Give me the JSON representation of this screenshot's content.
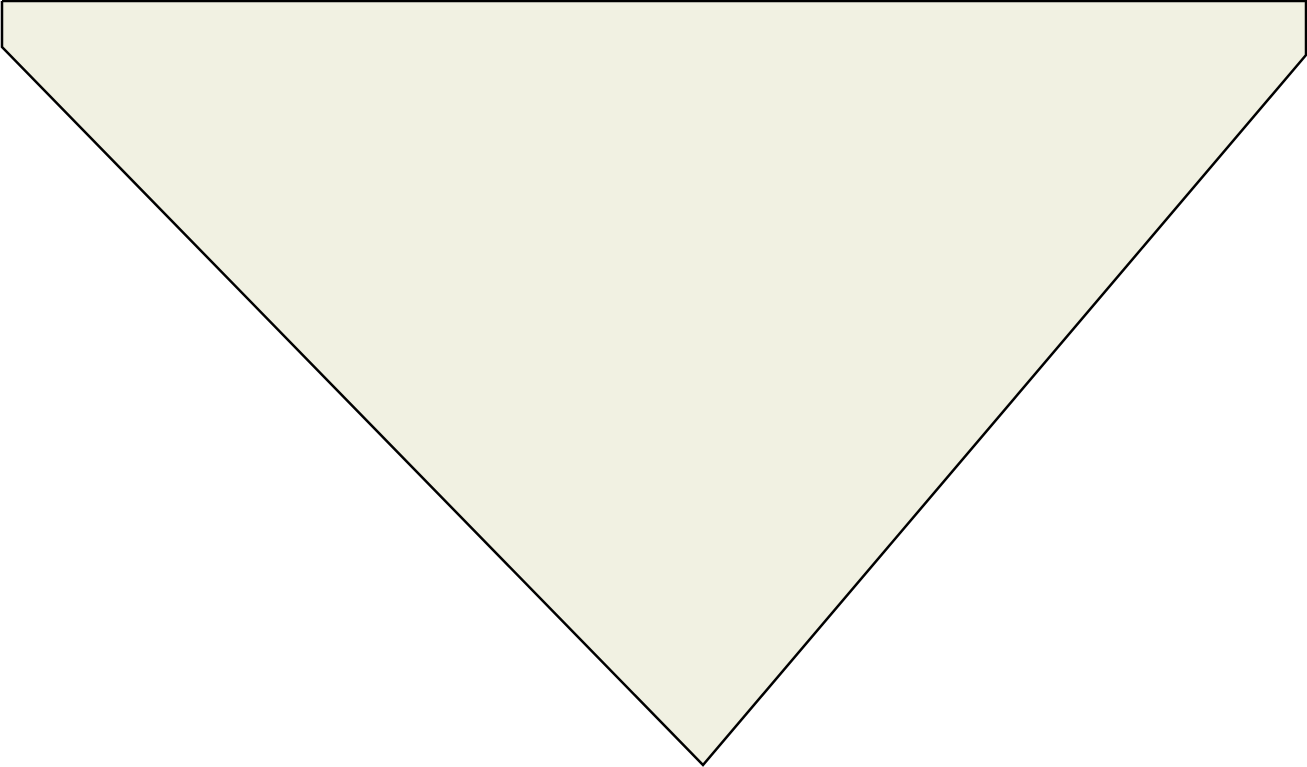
{
  "shape": {
    "kind": "downward-pointing triangle",
    "fill_color": "#f1f1e2",
    "stroke_color": "#000000",
    "background_color": "#ffffff"
  }
}
